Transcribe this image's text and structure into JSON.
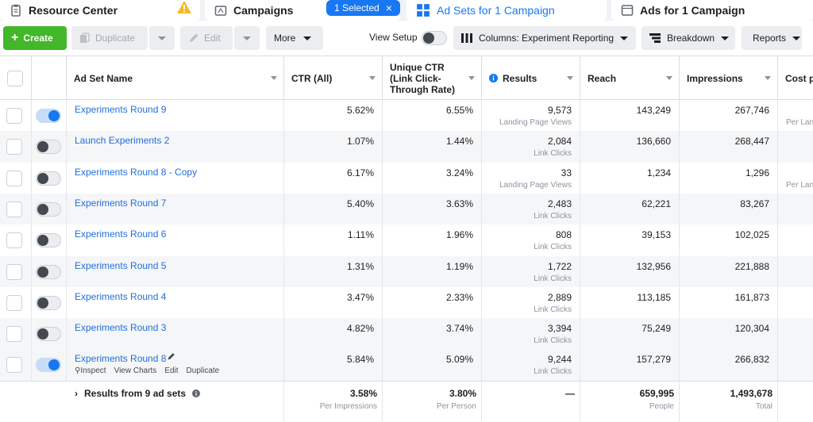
{
  "tabs": {
    "resource_center": "Resource Center",
    "campaigns": "Campaigns",
    "selected_pill": "1 Selected",
    "ad_sets": "Ad Sets for 1 Campaign",
    "ads": "Ads for 1 Campaign"
  },
  "toolbar": {
    "create": "Create",
    "duplicate": "Duplicate",
    "edit": "Edit",
    "more": "More",
    "view_setup": "View Setup",
    "columns": "Columns: Experiment Reporting",
    "breakdown": "Breakdown",
    "reports": "Reports"
  },
  "columns": {
    "name": "Ad Set Name",
    "ctr": "CTR (All)",
    "unique_ctr_1": "Unique CTR",
    "unique_ctr_2": "(Link Click-",
    "unique_ctr_3": "Through Rate)",
    "results": "Results",
    "reach": "Reach",
    "impressions": "Impressions",
    "cost": "Cost p"
  },
  "rows": [
    {
      "on": true,
      "name": "Experiments Round 9",
      "ctr": "5.62%",
      "uctr": "6.55%",
      "results": "9,573",
      "result_type": "Landing Page Views",
      "reach": "143,249",
      "impressions": "267,746",
      "cost_sub": "Per Lan"
    },
    {
      "on": false,
      "name": "Launch Experiments 2",
      "ctr": "1.07%",
      "uctr": "1.44%",
      "results": "2,084",
      "result_type": "Link Clicks",
      "reach": "136,660",
      "impressions": "268,447",
      "cost_sub": ""
    },
    {
      "on": false,
      "name": "Experiments Round 8 - Copy",
      "ctr": "6.17%",
      "uctr": "3.24%",
      "results": "33",
      "result_type": "Landing Page Views",
      "reach": "1,234",
      "impressions": "1,296",
      "cost_sub": "Per Lan"
    },
    {
      "on": false,
      "name": "Experiments Round 7",
      "ctr": "5.40%",
      "uctr": "3.63%",
      "results": "2,483",
      "result_type": "Link Clicks",
      "reach": "62,221",
      "impressions": "83,267",
      "cost_sub": ""
    },
    {
      "on": false,
      "name": "Experiments Round 6",
      "ctr": "1.11%",
      "uctr": "1.96%",
      "results": "808",
      "result_type": "Link Clicks",
      "reach": "39,153",
      "impressions": "102,025",
      "cost_sub": ""
    },
    {
      "on": false,
      "name": "Experiments Round 5",
      "ctr": "1.31%",
      "uctr": "1.19%",
      "results": "1,722",
      "result_type": "Link Clicks",
      "reach": "132,956",
      "impressions": "221,888",
      "cost_sub": ""
    },
    {
      "on": false,
      "name": "Experiments Round 4",
      "ctr": "3.47%",
      "uctr": "2.33%",
      "results": "2,889",
      "result_type": "Link Clicks",
      "reach": "113,185",
      "impressions": "161,873",
      "cost_sub": ""
    },
    {
      "on": false,
      "name": "Experiments Round 3",
      "ctr": "4.82%",
      "uctr": "3.74%",
      "results": "3,394",
      "result_type": "Link Clicks",
      "reach": "75,249",
      "impressions": "120,304",
      "cost_sub": ""
    },
    {
      "on": true,
      "name": "Experiments Round 8",
      "ctr": "5.84%",
      "uctr": "5.09%",
      "results": "9,244",
      "result_type": "Link Clicks",
      "reach": "157,279",
      "impressions": "266,832",
      "cost_sub": ""
    }
  ],
  "row_actions": {
    "inspect": "Inspect",
    "view_charts": "View Charts",
    "edit": "Edit",
    "duplicate": "Duplicate"
  },
  "footer": {
    "label": "Results from 9 ad sets",
    "ctr": "3.58%",
    "ctr_sub": "Per Impressions",
    "uctr": "3.80%",
    "uctr_sub": "Per Person",
    "results": "—",
    "reach": "659,995",
    "reach_sub": "People",
    "impressions": "1,493,678",
    "impressions_sub": "Total"
  }
}
